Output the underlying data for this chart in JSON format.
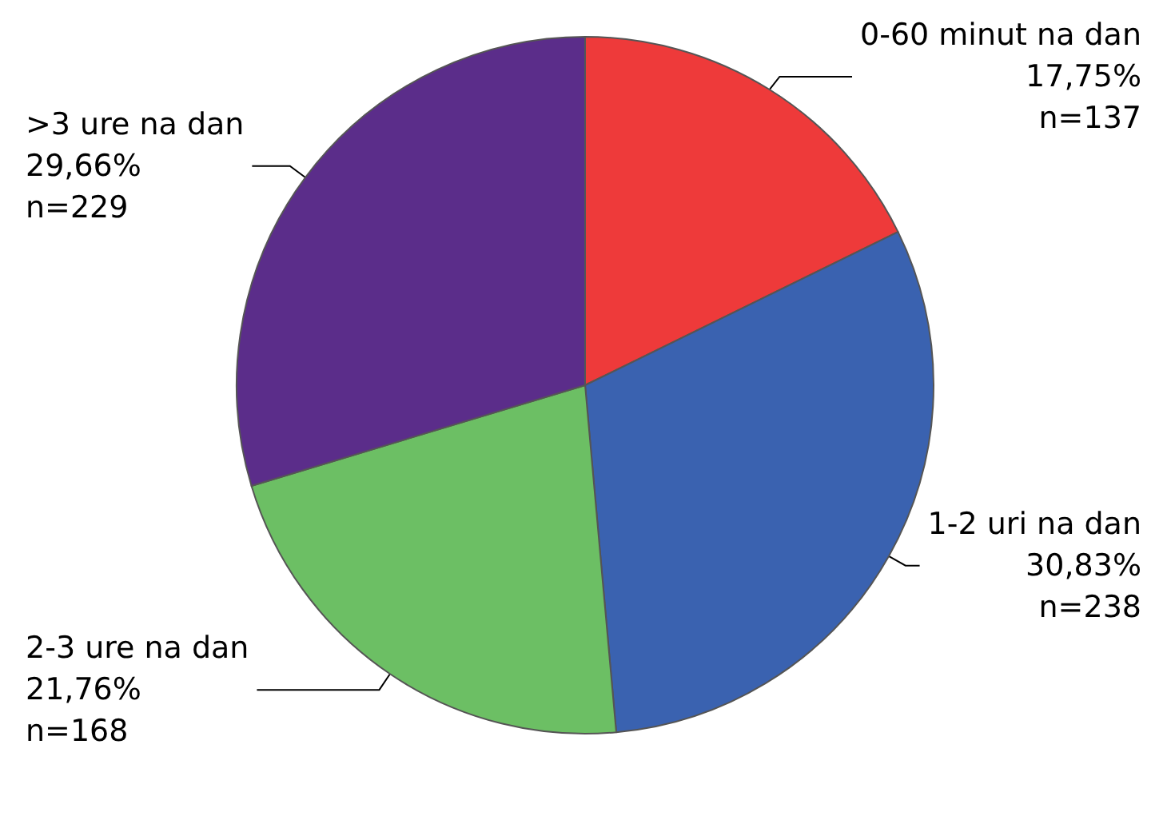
{
  "chart_data": {
    "type": "pie",
    "categories": [
      "0-60 minut na dan",
      "1-2 uri na dan",
      "2-3 ure na dan",
      ">3 ure na dan"
    ],
    "values": [
      137,
      238,
      168,
      229
    ],
    "value_labels": [
      "17,75%\nn=137",
      "30,83%\nn=238",
      "21,76%\nn=168",
      "29,66%\nn=229"
    ],
    "colors": [
      "#ee3a3a",
      "#3a62b0",
      "#6cbf64",
      "#5b2d8a"
    ],
    "legend": false
  }
}
